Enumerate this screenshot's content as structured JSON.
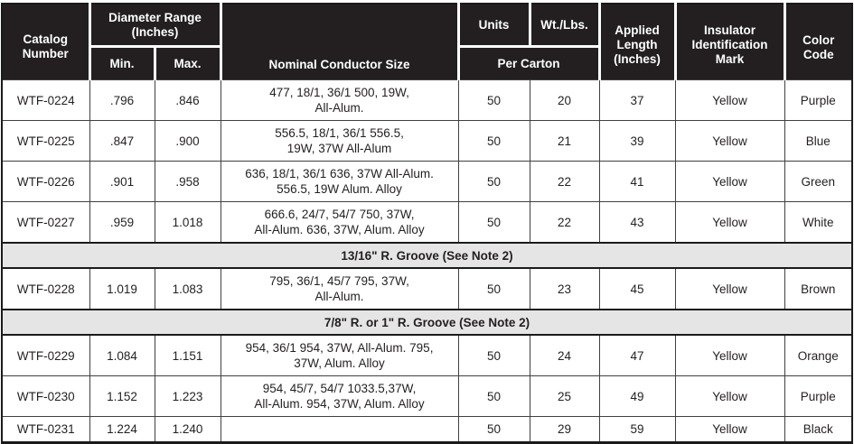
{
  "table": {
    "headers": {
      "catalog": "Catalog\nNumber",
      "diameter_range": "Diameter Range\n(Inches)",
      "min": "Min.",
      "max": "Max.",
      "conductor": "Nominal Conductor Size",
      "units": "Units",
      "wt": "Wt./Lbs.",
      "per_carton": "Per Carton",
      "applied": "Applied\nLength\n(Inches)",
      "insulator": "Insulator\nIdentification\nMark",
      "color": "Color\nCode"
    },
    "rows": [
      {
        "type": "data",
        "catalog": "WTF-0224",
        "min": ".796",
        "max": ".846",
        "conductor": "477, 18/1, 36/1 500, 19W,\nAll-Alum.",
        "units": "50",
        "wt": "20",
        "applied": "37",
        "insulator": "Yellow",
        "color": "Purple"
      },
      {
        "type": "data",
        "catalog": "WTF-0225",
        "min": ".847",
        "max": ".900",
        "conductor": "556.5, 18/1, 36/1 556.5,\n19W, 37W All-Alum",
        "units": "50",
        "wt": "21",
        "applied": "39",
        "insulator": "Yellow",
        "color": "Blue"
      },
      {
        "type": "data",
        "catalog": "WTF-0226",
        "min": ".901",
        "max": ".958",
        "conductor": "636, 18/1, 36/1 636, 37W All-Alum.\n556.5, 19W Alum. Alloy",
        "units": "50",
        "wt": "22",
        "applied": "41",
        "insulator": "Yellow",
        "color": "Green"
      },
      {
        "type": "data",
        "catalog": "WTF-0227",
        "min": ".959",
        "max": "1.018",
        "conductor": "666.6, 24/7, 54/7 750, 37W,\nAll-Alum. 636, 37W, Alum. Alloy",
        "units": "50",
        "wt": "22",
        "applied": "43",
        "insulator": "Yellow",
        "color": "White"
      },
      {
        "type": "section",
        "label": "13/16\" R. Groove (See Note 2)"
      },
      {
        "type": "data",
        "catalog": "WTF-0228",
        "min": "1.019",
        "max": "1.083",
        "conductor": "795, 36/1, 45/7 795, 37W,\nAll-Alum.",
        "units": "50",
        "wt": "23",
        "applied": "45",
        "insulator": "Yellow",
        "color": "Brown"
      },
      {
        "type": "section",
        "label": "7/8\" R. or 1\" R. Groove (See Note 2)"
      },
      {
        "type": "data",
        "catalog": "WTF-0229",
        "min": "1.084",
        "max": "1.151",
        "conductor": "954, 36/1 954, 37W, All-Alum. 795,\n37W, Alum. Alloy",
        "units": "50",
        "wt": "24",
        "applied": "47",
        "insulator": "Yellow",
        "color": "Orange"
      },
      {
        "type": "data",
        "catalog": "WTF-0230",
        "min": "1.152",
        "max": "1.223",
        "conductor": "954, 45/7, 54/7 1033.5,37W,\nAll-Alum. 954, 37W, Alum. Alloy",
        "units": "50",
        "wt": "25",
        "applied": "49",
        "insulator": "Yellow",
        "color": "Purple"
      },
      {
        "type": "data",
        "catalog": "WTF-0231",
        "min": "1.224",
        "max": "1.240",
        "conductor": "",
        "units": "50",
        "wt": "29",
        "applied": "59",
        "insulator": "Yellow",
        "color": "Black"
      }
    ],
    "colors": {
      "header_bg": "#231f20",
      "header_text": "#ffffff",
      "section_bg": "#e5e5e5",
      "grid_line": "#404040",
      "outer_border": "#1a1a1a",
      "body_text": "#231f20"
    }
  }
}
